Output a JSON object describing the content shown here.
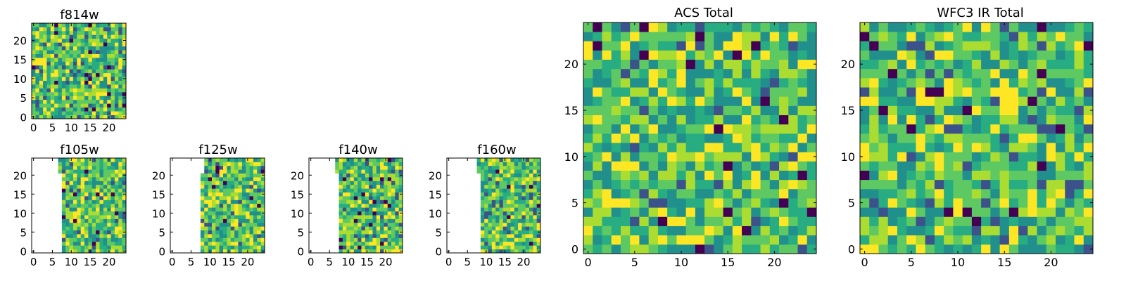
{
  "chart_data": [
    {
      "type": "heatmap",
      "title": "f814w",
      "x_ticks": [
        0,
        5,
        10,
        15,
        20
      ],
      "y_ticks": [
        0,
        5,
        10,
        15,
        20
      ],
      "xlim": [
        -0.5,
        24.5
      ],
      "ylim": [
        -0.5,
        24.5
      ],
      "grid": 25,
      "valid_from_x": 0,
      "valid_from_x_top": 0,
      "colormap": "viridis"
    },
    {
      "type": "heatmap",
      "title": "f105w",
      "x_ticks": [
        0,
        5,
        10,
        15,
        20
      ],
      "y_ticks": [
        0,
        5,
        10,
        15,
        20
      ],
      "xlim": [
        -0.5,
        24.5
      ],
      "ylim": [
        -0.5,
        24.5
      ],
      "grid": 25,
      "valid_from_x": 8,
      "valid_from_x_top": 7,
      "colormap": "viridis"
    },
    {
      "type": "heatmap",
      "title": "f125w",
      "x_ticks": [
        0,
        5,
        10,
        15,
        20
      ],
      "y_ticks": [
        0,
        5,
        10,
        15,
        20
      ],
      "xlim": [
        -0.5,
        24.5
      ],
      "ylim": [
        -0.5,
        24.5
      ],
      "grid": 25,
      "valid_from_x": 8,
      "valid_from_x_top": 9,
      "colormap": "viridis"
    },
    {
      "type": "heatmap",
      "title": "f140w",
      "x_ticks": [
        0,
        5,
        10,
        15,
        20
      ],
      "y_ticks": [
        0,
        5,
        10,
        15,
        20
      ],
      "xlim": [
        -0.5,
        24.5
      ],
      "ylim": [
        -0.5,
        24.5
      ],
      "grid": 25,
      "valid_from_x": 8,
      "valid_from_x_top": 7,
      "colormap": "viridis"
    },
    {
      "type": "heatmap",
      "title": "f160w",
      "x_ticks": [
        0,
        5,
        10,
        15,
        20
      ],
      "y_ticks": [
        0,
        5,
        10,
        15,
        20
      ],
      "xlim": [
        -0.5,
        24.5
      ],
      "ylim": [
        -0.5,
        24.5
      ],
      "grid": 25,
      "valid_from_x": 9,
      "valid_from_x_top": 8,
      "colormap": "viridis"
    },
    {
      "type": "heatmap",
      "title": "ACS Total",
      "x_ticks": [
        0,
        5,
        10,
        15,
        20
      ],
      "y_ticks": [
        0,
        5,
        10,
        15,
        20
      ],
      "xlim": [
        -0.5,
        24.5
      ],
      "ylim": [
        -0.5,
        24.5
      ],
      "grid": 25,
      "valid_from_x": 0,
      "valid_from_x_top": 0,
      "colormap": "viridis"
    },
    {
      "type": "heatmap",
      "title": "WFC3 IR Total",
      "x_ticks": [
        0,
        5,
        10,
        15,
        20
      ],
      "y_ticks": [
        0,
        5,
        10,
        15,
        20
      ],
      "xlim": [
        -0.5,
        24.5
      ],
      "ylim": [
        -0.5,
        24.5
      ],
      "grid": 25,
      "valid_from_x": 0,
      "valid_from_x_top": 0,
      "colormap": "viridis"
    }
  ]
}
